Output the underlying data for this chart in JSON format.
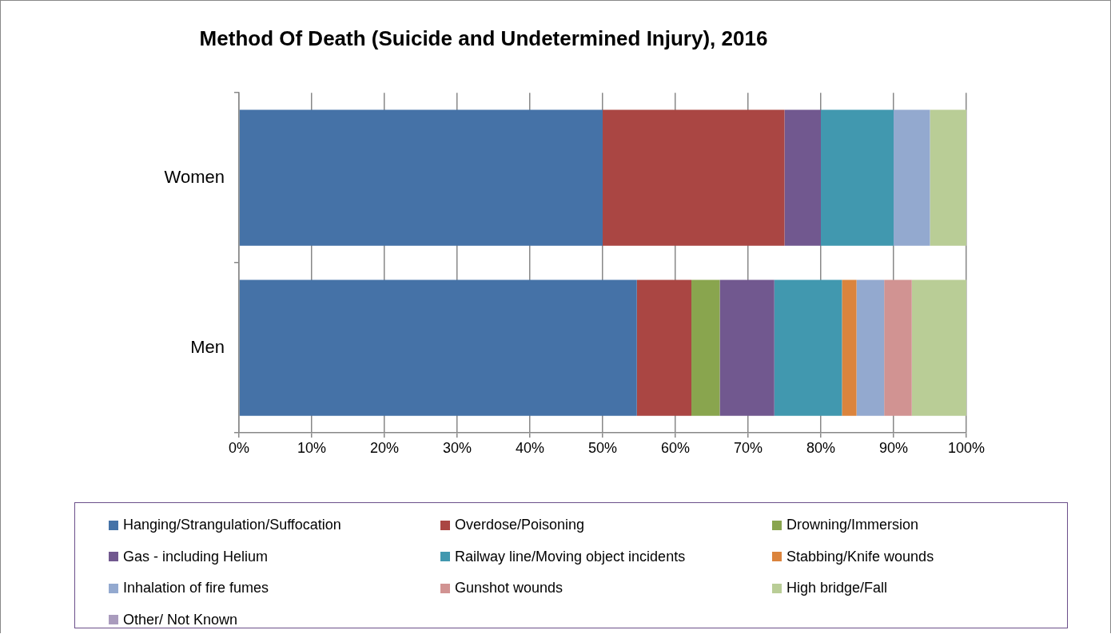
{
  "chart_data": {
    "type": "bar",
    "orientation": "horizontal",
    "stacked": true,
    "title": "Method Of Death (Suicide and Undetermined Injury), 2016",
    "categories": [
      "Women",
      "Men"
    ],
    "series": [
      {
        "name": "Hanging/Strangulation/Suffocation",
        "color": "#4572a7",
        "values": [
          50,
          54.7
        ]
      },
      {
        "name": "Overdose/Poisoning",
        "color": "#aa4643",
        "values": [
          25,
          7.5
        ]
      },
      {
        "name": "Drowning/Immersion",
        "color": "#89a54e",
        "values": [
          0,
          3.9
        ]
      },
      {
        "name": "Gas - including Helium",
        "color": "#71588f",
        "values": [
          5,
          7.5
        ]
      },
      {
        "name": "Railway line/Moving object incidents",
        "color": "#4198af",
        "values": [
          10,
          9.3
        ]
      },
      {
        "name": "Stabbing/Knife wounds",
        "color": "#db843d",
        "values": [
          0,
          2.0
        ]
      },
      {
        "name": "Inhalation of fire fumes",
        "color": "#93a9cf",
        "values": [
          5,
          3.8
        ]
      },
      {
        "name": "Gunshot wounds",
        "color": "#d19392",
        "values": [
          0,
          3.8
        ]
      },
      {
        "name": "High bridge/Fall",
        "color": "#b9cd96",
        "values": [
          5,
          7.5
        ]
      },
      {
        "name": "Other/ Not Known",
        "color": "#a99bbd",
        "values": [
          0,
          0
        ]
      }
    ],
    "xlim": [
      0,
      100
    ],
    "xticks": [
      {
        "value": 0,
        "label": "0%"
      },
      {
        "value": 10,
        "label": "10%"
      },
      {
        "value": 20,
        "label": "20%"
      },
      {
        "value": 30,
        "label": "30%"
      },
      {
        "value": 40,
        "label": "40%"
      },
      {
        "value": 50,
        "label": "50%"
      },
      {
        "value": 60,
        "label": "60%"
      },
      {
        "value": 70,
        "label": "70%"
      },
      {
        "value": 80,
        "label": "80%"
      },
      {
        "value": 90,
        "label": "90%"
      },
      {
        "value": 100,
        "label": "100%"
      }
    ],
    "grid": "x",
    "legend": "bottom"
  }
}
